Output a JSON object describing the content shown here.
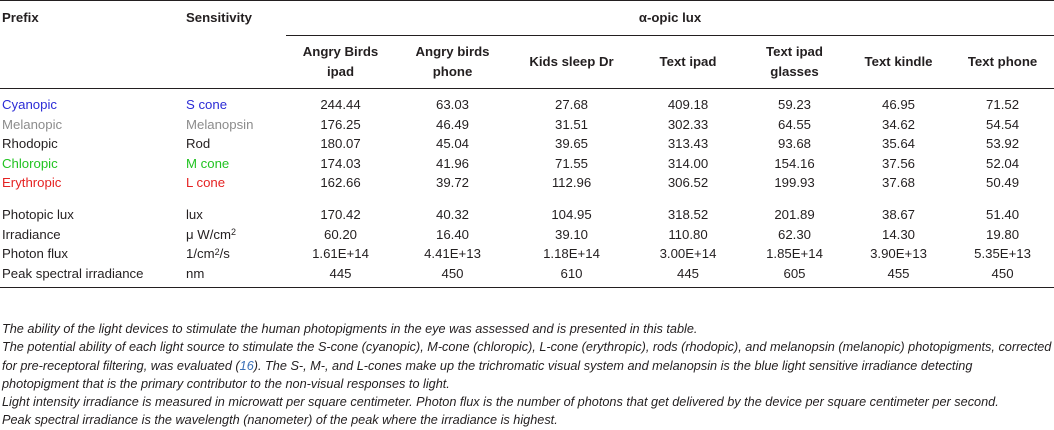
{
  "header": {
    "prefix": "Prefix",
    "sensitivity": "Sensitivity",
    "group": "α-opic lux",
    "columns": [
      [
        "Angry Birds",
        "ipad"
      ],
      [
        "Angry birds",
        "phone"
      ],
      [
        "Kids sleep Dr",
        ""
      ],
      [
        "Text ipad",
        ""
      ],
      [
        "Text ipad",
        "glasses"
      ],
      [
        "Text kindle",
        ""
      ],
      [
        "Text phone",
        ""
      ]
    ]
  },
  "opic_rows": [
    {
      "prefix": "Cyanopic",
      "sensitivity": "S cone",
      "color": "#2b2bd6",
      "values": [
        "244.44",
        "63.03",
        "27.68",
        "409.18",
        "59.23",
        "46.95",
        "71.52"
      ]
    },
    {
      "prefix": "Melanopic",
      "sensitivity": "Melanopsin",
      "color": "#8c8c8c",
      "values": [
        "176.25",
        "46.49",
        "31.51",
        "302.33",
        "64.55",
        "34.62",
        "54.54"
      ]
    },
    {
      "prefix": "Rhodopic",
      "sensitivity": "Rod",
      "color": "#231f20",
      "values": [
        "180.07",
        "45.04",
        "39.65",
        "313.43",
        "93.68",
        "35.64",
        "53.92"
      ]
    },
    {
      "prefix": "Chloropic",
      "sensitivity": "M cone",
      "color": "#22c322",
      "values": [
        "174.03",
        "41.96",
        "71.55",
        "314.00",
        "154.16",
        "37.56",
        "52.04"
      ]
    },
    {
      "prefix": "Erythropic",
      "sensitivity": "L cone",
      "color": "#e52222",
      "values": [
        "162.66",
        "39.72",
        "112.96",
        "306.52",
        "199.93",
        "37.68",
        "50.49"
      ]
    }
  ],
  "other_rows": [
    {
      "prefix": "Photopic lux",
      "unit": "lux",
      "unit_sup": "",
      "unit_tail": "",
      "values": [
        "170.42",
        "40.32",
        "104.95",
        "318.52",
        "201.89",
        "38.67",
        "51.40"
      ]
    },
    {
      "prefix": "Irradiance",
      "unit": "μ W/cm",
      "unit_sup": "2",
      "unit_tail": "",
      "values": [
        "60.20",
        "16.40",
        "39.10",
        "110.80",
        "62.30",
        "14.30",
        "19.80"
      ]
    },
    {
      "prefix": "Photon flux",
      "unit": "1/cm",
      "unit_sup": "2",
      "unit_tail": "/s",
      "values": [
        "1.61E+14",
        "4.41E+13",
        "1.18E+14",
        "3.00E+14",
        "1.85E+14",
        "3.90E+13",
        "5.35E+13"
      ]
    },
    {
      "prefix": "Peak spectral irradiance",
      "unit": "nm",
      "unit_sup": "",
      "unit_tail": "",
      "values": [
        "445",
        "450",
        "610",
        "445",
        "605",
        "455",
        "450"
      ]
    }
  ],
  "footnotes": {
    "line1": "The ability of the light devices to stimulate the human photopigments in the eye was assessed and is presented in this table.",
    "line2_pre": "The potential ability of each light source to stimulate the S-cone (cyanopic), M-cone (chloropic), L-cone (erythropic), rods (rhodopic), and melanopsin (melanopic) photopigments, corrected for pre-receptoral filtering, was evaluated (",
    "line2_ref": "16",
    "line2_post": "). The S-, M-, and L-cones make up the trichromatic visual system and melanopsin is the blue light sensitive irradiance detecting photopigment that is the primary contributor to the non-visual responses to light.",
    "line3": "Light intensity irradiance is measured in microwatt per square centimeter. Photon flux is the number of photons that get delivered by the device per square centimeter per second.",
    "line4": "Peak spectral irradiance is the wavelength (nanometer) of the peak where the irradiance is highest."
  }
}
